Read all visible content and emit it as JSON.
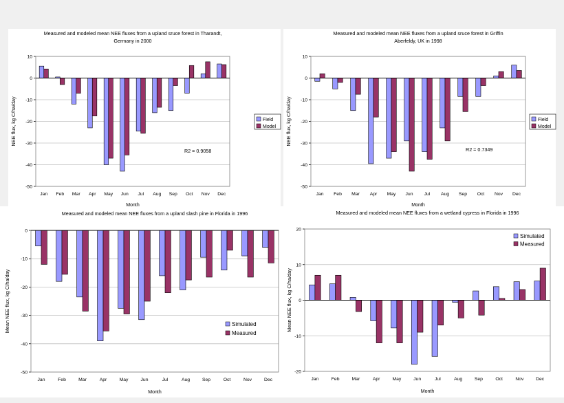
{
  "colors": {
    "field": "#9999ff",
    "model": "#993366",
    "edge": "#000000",
    "grid": "#c0c0c0"
  },
  "chart_data": [
    {
      "type": "bar",
      "title": "Measured and modeled mean NEE fluxes from a upland sruce forest in Tharandt, Germany in 2000",
      "title_lines": [
        "Measured and modeled mean NEE fluxes from a upland sruce forest in Tharandt,",
        "Germany in 2000"
      ],
      "xlabel": "Month",
      "ylabel": "NEE flux, kg C/ha/day",
      "categories": [
        "Jan",
        "Feb",
        "Mar",
        "Apr",
        "May",
        "Jun",
        "Jul",
        "Aug",
        "Sep",
        "Oct",
        "Nov",
        "Dec"
      ],
      "ylim": [
        -50,
        10
      ],
      "yticks": [
        10,
        0,
        -10,
        -20,
        -30,
        -40,
        -50
      ],
      "legend_position": "right",
      "annotation": "R2 = 0.9058",
      "series": [
        {
          "name": "Field",
          "values": [
            5.5,
            0.5,
            -12,
            -23,
            -40,
            -43,
            -24.5,
            -16,
            -15,
            -7,
            2,
            6.5
          ]
        },
        {
          "name": "Model",
          "values": [
            4.2,
            -3,
            -7,
            -17.5,
            -37,
            -35.5,
            -25.5,
            -13.5,
            -3.5,
            5.8,
            7.5,
            6.2
          ]
        }
      ]
    },
    {
      "type": "bar",
      "title": "Measured and modeled mean NEE fluxes from a upland sruce forest in Griffin Aberfeldy, UK in 1998",
      "title_lines": [
        "Measured and modeled mean NEE fluxes from a upland sruce forest in Griffin",
        "Aberfeldy, UK in 1998"
      ],
      "xlabel": "Month",
      "ylabel": "NEE flux, kg C/ha/day",
      "categories": [
        "Jan",
        "Feb",
        "Mar",
        "Apr",
        "May",
        "Jun",
        "Jul",
        "Aug",
        "Sep",
        "Oct",
        "Nov",
        "Dec"
      ],
      "ylim": [
        -50,
        10
      ],
      "yticks": [
        10,
        0,
        -10,
        -20,
        -30,
        -40,
        -50
      ],
      "legend_position": "right",
      "annotation": "R2 = 0.7349",
      "series": [
        {
          "name": "Field",
          "values": [
            -1.5,
            -5,
            -15,
            -39.5,
            -37,
            -29,
            -34,
            -23,
            -8.5,
            -8.5,
            1,
            6
          ]
        },
        {
          "name": "Model",
          "values": [
            2,
            -2,
            -7.5,
            -18,
            -34,
            -43,
            -37.5,
            -29,
            -15.5,
            -3.5,
            3,
            3.5
          ]
        }
      ]
    },
    {
      "type": "bar",
      "title": "Measured and modeled mean NEE fluxes from a upland slash pine in Florida in 1996",
      "title_lines": [
        "Measured and modeled mean NEE fluxes from a upland slash pine in Florida in 1996"
      ],
      "xlabel": "Month",
      "ylabel": "Mean NEE flux, kg C/ha/day",
      "categories": [
        "Jan",
        "Feb",
        "Mar",
        "Apr",
        "May",
        "Jun",
        "Jul",
        "Aug",
        "Sep",
        "Oct",
        "Nov",
        "Dec"
      ],
      "ylim": [
        -50,
        0
      ],
      "yticks": [
        0,
        -10,
        -20,
        -30,
        -40,
        -50
      ],
      "legend_position": "lower-right",
      "series": [
        {
          "name": "Simulated",
          "values": [
            -5.5,
            -18,
            -23.5,
            -39,
            -27.5,
            -31.5,
            -16,
            -21,
            -9.5,
            -14,
            -9,
            -6
          ]
        },
        {
          "name": "Measured",
          "values": [
            -12,
            -15.5,
            -28.5,
            -35.5,
            -29.5,
            -25,
            -22,
            -17.5,
            -16.5,
            -7,
            -16.5,
            -11.5
          ]
        }
      ]
    },
    {
      "type": "bar",
      "title": "Measured and modeled mean NEE fluxes from a wetland cypress in Florida in 1996",
      "title_lines": [
        "Measured and modeled mean NEE fluxes from a wetland cypress in Florida in 1996"
      ],
      "xlabel": "Month",
      "ylabel": "Mean NEE flux, kg C/ha/day",
      "categories": [
        "Jan",
        "Feb",
        "Mar",
        "Apr",
        "May",
        "Jun",
        "Jul",
        "Aug",
        "Sep",
        "Oct",
        "Nov",
        "Dec"
      ],
      "ylim": [
        -20,
        20
      ],
      "yticks": [
        20,
        10,
        0,
        -10,
        -20
      ],
      "legend_position": "top-right",
      "series": [
        {
          "name": "Simulated",
          "values": [
            4.3,
            4.6,
            0.8,
            -5.8,
            -7.8,
            -18,
            -15.8,
            -0.6,
            2.6,
            3.8,
            5.2,
            5.4
          ]
        },
        {
          "name": "Measured",
          "values": [
            7,
            7,
            -3.2,
            -12,
            -12,
            -9,
            -7,
            -5,
            -4.2,
            0.5,
            3,
            9
          ]
        }
      ]
    }
  ]
}
